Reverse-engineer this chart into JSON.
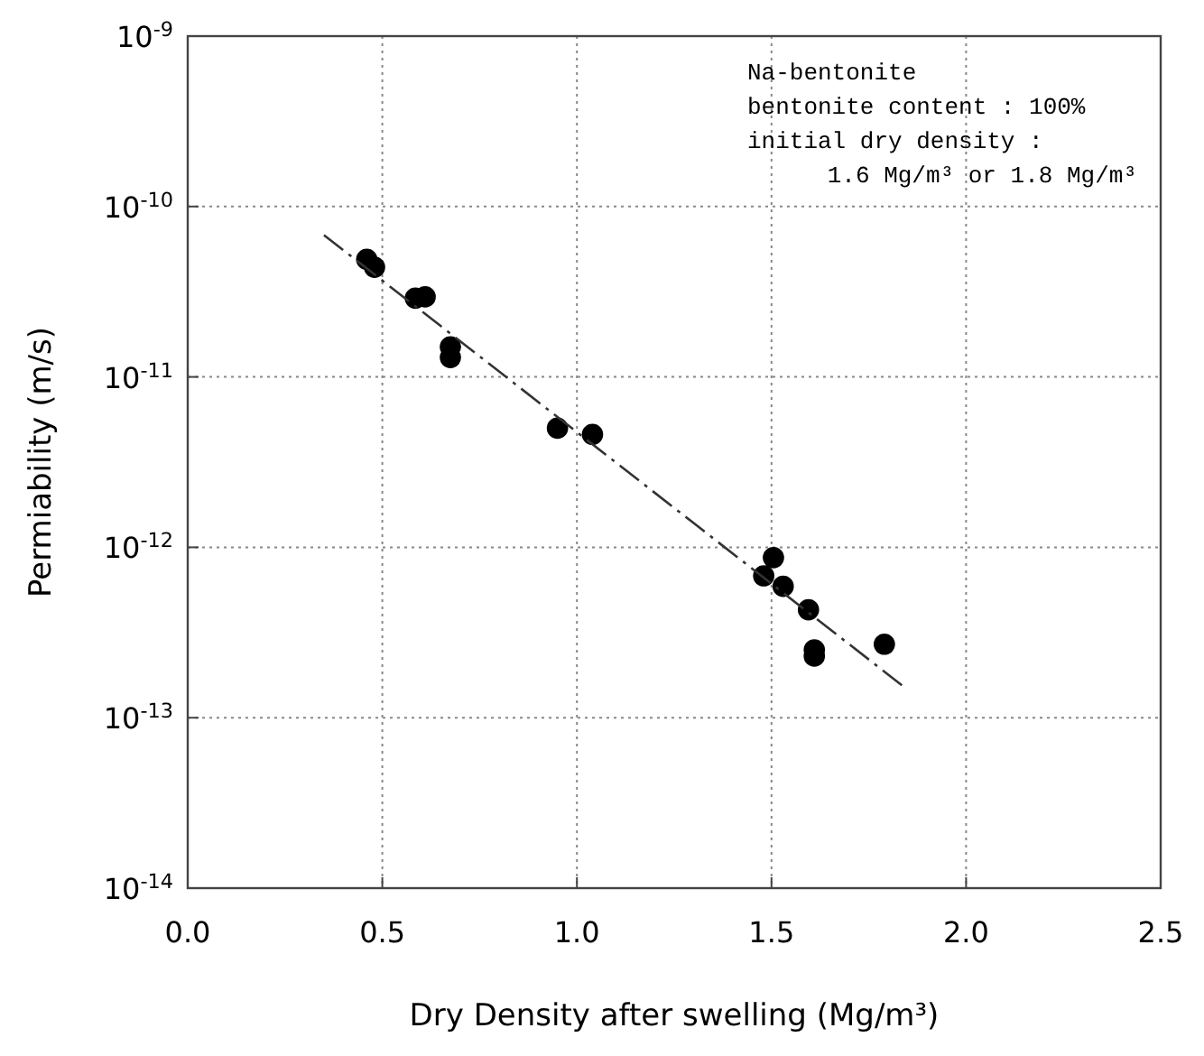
{
  "chart_data": {
    "type": "scatter",
    "xlabel": "Dry Density after swelling (Mg/m³)",
    "ylabel": "Permiability (m/s)",
    "log": "y",
    "grid": true,
    "marker": "circle",
    "xlim": [
      0,
      2.5
    ],
    "ylim": [
      1e-14,
      1e-09
    ],
    "xticks": [
      {
        "value": 0,
        "label": "0.0"
      },
      {
        "value": 0.5,
        "label": "0.5"
      },
      {
        "value": 1,
        "label": "1.0"
      },
      {
        "value": 1.5,
        "label": "1.5"
      },
      {
        "value": 2,
        "label": "2.0"
      },
      {
        "value": 2.5,
        "label": "2.5"
      }
    ],
    "yticks": [
      {
        "value": 1e-14,
        "label": "10$^{-14}$"
      },
      {
        "value": 1e-13,
        "label": "10$^{-13}$"
      },
      {
        "value": 1e-12,
        "label": "10$^{-12}$"
      },
      {
        "value": 1e-11,
        "label": "10$^{-11}$"
      },
      {
        "value": 1e-10,
        "label": "10$^{-10}$"
      },
      {
        "value": 1e-09,
        "label": "10$^{-9}$"
      }
    ],
    "annotations": [
      "Na-bentonite",
      "bentonite content : 100%",
      "initial dry density :",
      "1.6 Mg/m³ or 1.8 Mg/m³"
    ],
    "series": [
      {
        "color": "#000000",
        "x": [
          0.46,
          0.48,
          0.585,
          0.61,
          0.675,
          0.675,
          0.95,
          1.04,
          1.505,
          1.48,
          1.53,
          1.595,
          1.61,
          1.61,
          1.79
        ],
        "values": [
          4.9e-11,
          4.4e-11,
          2.9e-11,
          2.95e-11,
          1.5e-11,
          1.3e-11,
          5e-12,
          4.6e-12,
          8.7e-13,
          6.8e-13,
          5.9e-13,
          4.3e-13,
          2.5e-13,
          2.3e-13,
          2.7e-13
        ]
      },
      {
        "type": "line",
        "color": "#333333",
        "line_style": "dashed",
        "marker": "none",
        "x": [
          0.35,
          1.835
        ],
        "values": [
          6.8e-11,
          1.55e-13
        ]
      }
    ]
  }
}
